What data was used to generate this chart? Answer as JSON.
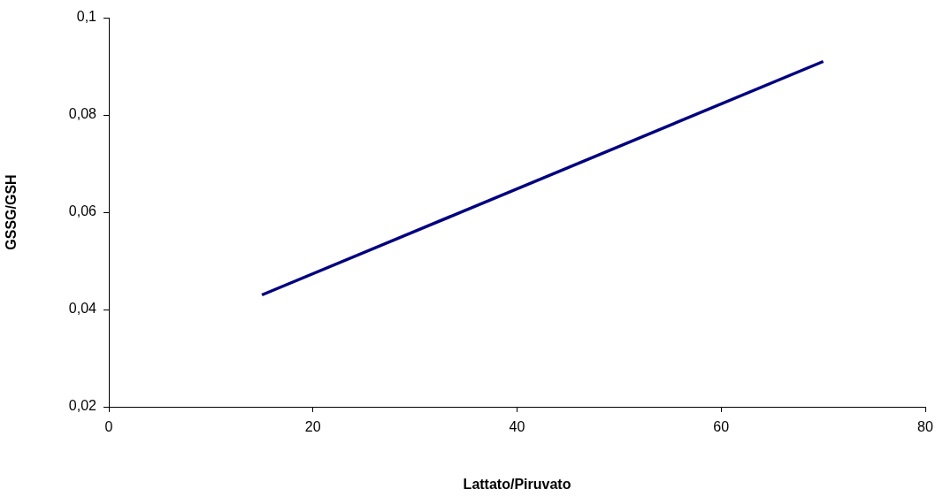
{
  "chart_data": {
    "type": "line",
    "xlabel": "Lattato/Piruvato",
    "ylabel": "GSSG/GSH",
    "x": [
      15,
      70
    ],
    "series": [
      {
        "color": "#000080",
        "values": [
          0.043,
          0.091
        ]
      }
    ],
    "xlim": [
      0,
      80
    ],
    "xticks": [
      0,
      20,
      40,
      60,
      80
    ],
    "ylim": [
      0.02,
      0.1
    ],
    "yticks": [
      {
        "value": 0.02,
        "label": "0,02"
      },
      {
        "value": 0.04,
        "label": "0,04"
      },
      {
        "value": 0.06,
        "label": "0,06"
      },
      {
        "value": 0.08,
        "label": "0,08"
      },
      {
        "value": 0.1,
        "label": "0,1"
      }
    ],
    "grid": false,
    "legend": false,
    "marker": "none",
    "line_style": "solid"
  }
}
